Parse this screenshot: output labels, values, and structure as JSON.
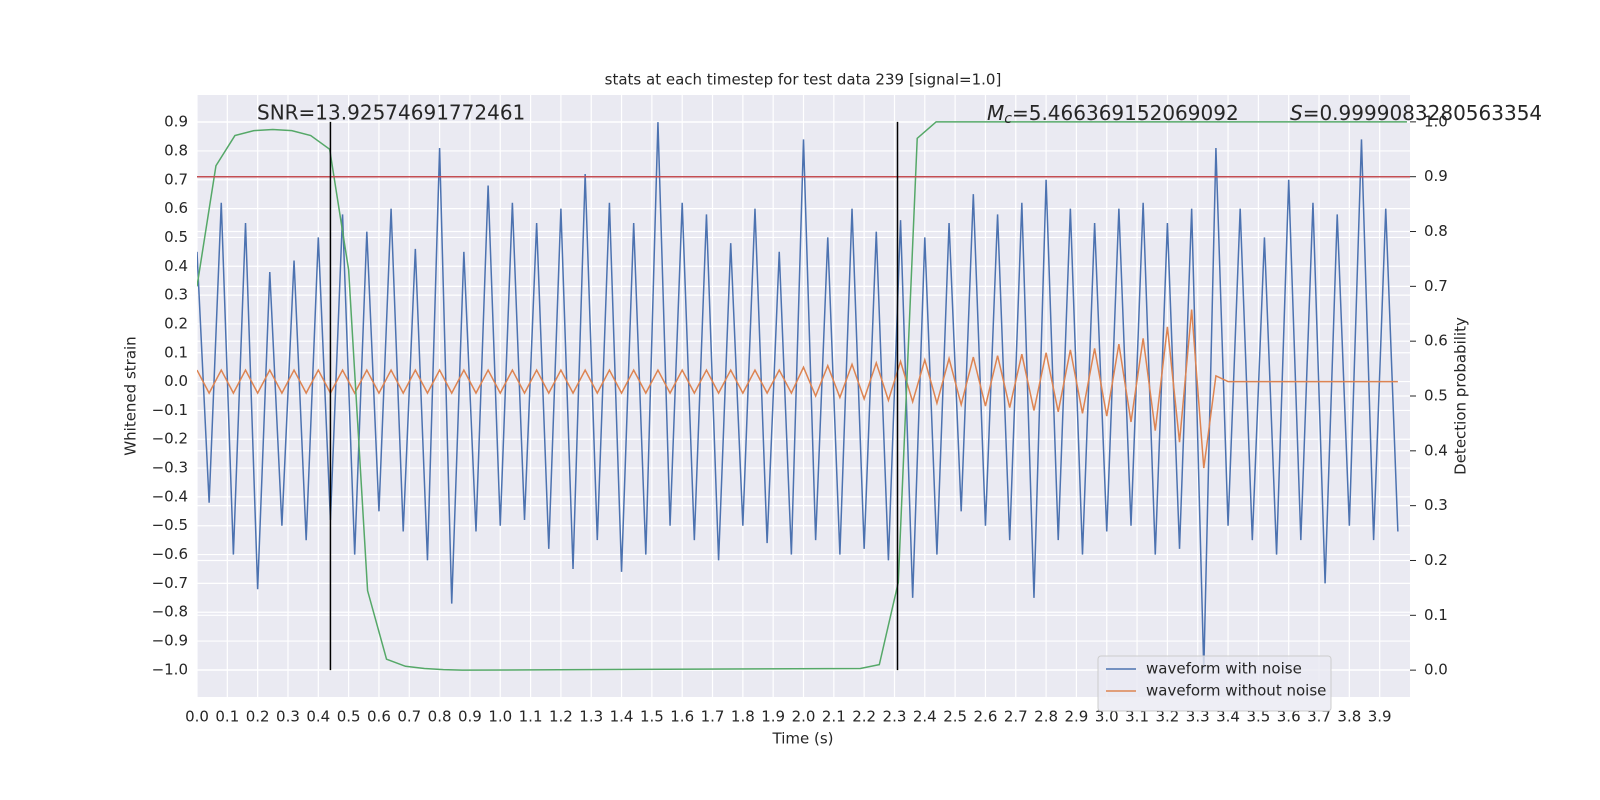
{
  "chart_data": {
    "type": "line",
    "title": "stats at each timestep for test data 239 [signal=1.0]",
    "xlabel": "Time (s)",
    "ylabel": "Whitened strain",
    "y2label": "Detection probability",
    "annotations": [
      {
        "text": "SNR=13.92574691772461"
      },
      {
        "symbol": "M",
        "sub": "c",
        "text": "=5.466369152069092"
      },
      {
        "symbol": "S",
        "text": "=0.9999083280563354"
      }
    ],
    "xlim": [
      0,
      4.0
    ],
    "ylim": [
      -1.094,
      0.994
    ],
    "y2lim": [
      -0.049,
      1.049
    ],
    "xticks": [
      {
        "value": 0,
        "label": "0.0"
      },
      0.1,
      0.2,
      0.3,
      0.4,
      0.5,
      0.6,
      0.7,
      0.8,
      0.9,
      {
        "value": 1,
        "label": "1.0"
      },
      1.1,
      1.2,
      1.3,
      1.4,
      1.5,
      1.6,
      1.7,
      1.8,
      1.9,
      {
        "value": 2,
        "label": "2.0"
      },
      2.1,
      2.2,
      2.3,
      2.4,
      2.5,
      2.6,
      2.7,
      2.8,
      2.9,
      {
        "value": 3,
        "label": "3.0"
      },
      3.1,
      3.2,
      3.3,
      3.4,
      3.5,
      3.6,
      3.7,
      3.8,
      3.9
    ],
    "yticks": [
      {
        "value": -1,
        "label": "−1.0"
      },
      {
        "value": -0.9,
        "label": "−0.9"
      },
      {
        "value": -0.8,
        "label": "−0.8"
      },
      {
        "value": -0.7,
        "label": "−0.7"
      },
      {
        "value": -0.6,
        "label": "−0.6"
      },
      {
        "value": -0.5,
        "label": "−0.5"
      },
      {
        "value": -0.4,
        "label": "−0.4"
      },
      {
        "value": -0.3,
        "label": "−0.3"
      },
      {
        "value": -0.2,
        "label": "−0.2"
      },
      {
        "value": -0.1,
        "label": "−0.1"
      },
      {
        "value": 0,
        "label": "0.0"
      },
      0.1,
      0.2,
      0.3,
      0.4,
      0.5,
      0.6,
      0.7,
      0.8,
      0.9
    ],
    "y2ticks": [
      {
        "value": 0,
        "label": "0.0"
      },
      0.1,
      0.2,
      0.3,
      0.4,
      0.5,
      0.6,
      0.7,
      0.8,
      0.9,
      {
        "value": 1,
        "label": "1.0"
      }
    ],
    "grid": true,
    "legend": "lower right",
    "x": [
      0,
      0.04,
      0.08,
      0.12,
      0.16,
      0.2,
      0.24,
      0.28,
      0.32,
      0.36,
      0.4,
      0.44,
      0.48,
      0.52,
      0.56,
      0.6,
      0.64,
      0.68,
      0.72,
      0.76,
      0.8,
      0.84,
      0.88,
      0.92,
      0.96,
      1.0,
      1.04,
      1.08,
      1.12,
      1.16,
      1.2,
      1.24,
      1.28,
      1.32,
      1.36,
      1.4,
      1.44,
      1.48,
      1.52,
      1.56,
      1.6,
      1.64,
      1.68,
      1.72,
      1.76,
      1.8,
      1.84,
      1.88,
      1.92,
      1.96,
      2.0,
      2.04,
      2.08,
      2.12,
      2.16,
      2.2,
      2.24,
      2.28,
      2.32,
      2.36,
      2.4,
      2.44,
      2.48,
      2.52,
      2.56,
      2.6,
      2.64,
      2.68,
      2.72,
      2.76,
      2.8,
      2.84,
      2.88,
      2.92,
      2.96,
      3.0,
      3.04,
      3.08,
      3.12,
      3.16,
      3.2,
      3.24,
      3.28,
      3.32,
      3.36,
      3.4,
      3.44,
      3.48,
      3.52,
      3.56,
      3.6,
      3.64,
      3.68,
      3.72,
      3.76,
      3.8,
      3.84,
      3.88,
      3.92,
      3.96
    ],
    "series": [
      {
        "name": "waveform with noise",
        "color": "#4c72b0",
        "values": [
          0.45,
          -0.42,
          0.62,
          -0.6,
          0.55,
          -0.72,
          0.38,
          -0.5,
          0.42,
          -0.55,
          0.5,
          -0.48,
          0.58,
          -0.6,
          0.52,
          -0.45,
          0.6,
          -0.52,
          0.46,
          -0.62,
          0.81,
          -0.77,
          0.45,
          -0.52,
          0.68,
          -0.5,
          0.62,
          -0.48,
          0.55,
          -0.58,
          0.6,
          -0.65,
          0.72,
          -0.55,
          0.62,
          -0.66,
          0.55,
          -0.6,
          0.9,
          -0.5,
          0.62,
          -0.55,
          0.58,
          -0.62,
          0.48,
          -0.5,
          0.6,
          -0.56,
          0.45,
          -0.6,
          0.84,
          -0.55,
          0.5,
          -0.6,
          0.6,
          -0.58,
          0.52,
          -0.62,
          0.56,
          -0.75,
          0.5,
          -0.6,
          0.55,
          -0.45,
          0.65,
          -0.5,
          0.58,
          -0.55,
          0.62,
          -0.75,
          0.7,
          -0.55,
          0.6,
          -0.6,
          0.55,
          -0.52,
          0.6,
          -0.5,
          0.62,
          -0.6,
          0.55,
          -0.58,
          0.6,
          -1.0,
          0.81,
          -0.5,
          0.6,
          -0.55,
          0.5,
          -0.6,
          0.7,
          -0.55,
          0.62,
          -0.7,
          0.58,
          -0.5,
          0.84,
          -0.55,
          0.6,
          -0.52
        ]
      },
      {
        "name": "waveform without noise",
        "color": "#dd8452",
        "values": [
          0.04,
          -0.04,
          0.04,
          -0.04,
          0.04,
          -0.04,
          0.04,
          -0.04,
          0.04,
          -0.04,
          0.04,
          -0.04,
          0.04,
          -0.04,
          0.04,
          -0.04,
          0.04,
          -0.04,
          0.04,
          -0.04,
          0.04,
          -0.04,
          0.04,
          -0.04,
          0.04,
          -0.04,
          0.04,
          -0.04,
          0.04,
          -0.04,
          0.04,
          -0.04,
          0.04,
          -0.04,
          0.04,
          -0.04,
          0.04,
          -0.04,
          0.04,
          -0.04,
          0.04,
          -0.04,
          0.04,
          -0.04,
          0.04,
          -0.04,
          0.04,
          -0.04,
          0.04,
          -0.04,
          0.05,
          -0.05,
          0.055,
          -0.055,
          0.06,
          -0.06,
          0.065,
          -0.065,
          0.07,
          -0.07,
          0.075,
          -0.075,
          0.08,
          -0.08,
          0.085,
          -0.085,
          0.09,
          -0.09,
          0.095,
          -0.1,
          0.1,
          -0.105,
          0.11,
          -0.11,
          0.115,
          -0.12,
          0.13,
          -0.14,
          0.15,
          -0.17,
          0.19,
          -0.21,
          0.25,
          -0.3,
          0.02,
          0,
          0,
          0,
          0,
          0,
          0,
          0,
          0,
          0,
          0,
          0,
          0,
          0,
          0,
          0
        ]
      },
      {
        "color": "#55a868",
        "axis": "y2",
        "x": [
          0,
          0.0625,
          0.125,
          0.1875,
          0.25,
          0.3125,
          0.375,
          0.4375,
          0.5,
          0.5625,
          0.625,
          0.6875,
          0.75,
          0.8125,
          0.875,
          2.1875,
          2.25,
          2.3125,
          2.375,
          2.4375,
          3.99
        ],
        "values": [
          0.7,
          0.92,
          0.975,
          0.984,
          0.986,
          0.984,
          0.975,
          0.95,
          0.73,
          0.145,
          0.02,
          0.007,
          0.003,
          0.001,
          0,
          0.003,
          0.01,
          0.16,
          0.97,
          1.0,
          1.0
        ]
      }
    ],
    "hline_y2": {
      "value": 0.9,
      "color": "#c44e52"
    },
    "vlines": {
      "values": [
        0.44,
        2.31
      ],
      "color": "#000000"
    }
  }
}
